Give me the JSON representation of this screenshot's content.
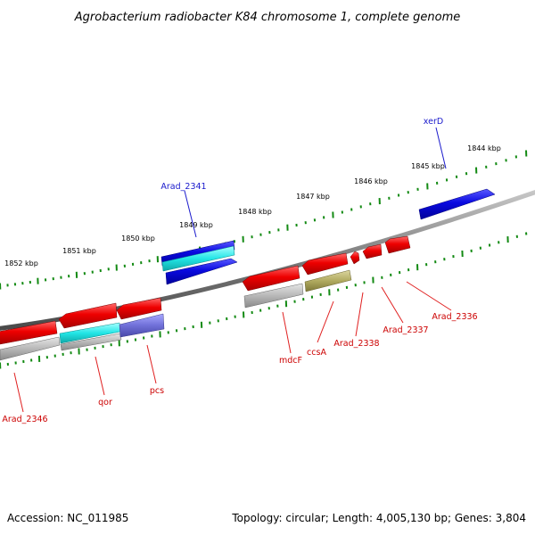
{
  "title": "Agrobacterium radiobacter K84 chromosome 1, complete genome",
  "footer": {
    "accession": "Accession: NC_011985",
    "summary": "Topology: circular; Length: 4,005,130 bp; Genes: 3,804"
  },
  "kbp_labels": [
    "1844 kbp",
    "1845 kbp",
    "1846 kbp",
    "1847 kbp",
    "1848 kbp",
    "1849 kbp",
    "1850 kbp",
    "1851 kbp",
    "1852 kbp"
  ],
  "gene_labels": {
    "xerD": "xerD",
    "Arad_2341": "Arad_2341",
    "Arad_2336": "Arad_2336",
    "Arad_2337": "Arad_2337",
    "Arad_2338": "Arad_2338",
    "ccsA": "ccsA",
    "mdcF": "mdcF",
    "pcs": "pcs",
    "qor": "qor",
    "Arad_2346": "Arad_2346"
  },
  "colors": {
    "forward_label": "#1a1acc",
    "reverse_label": "#cc0000",
    "forward_gene": "#0a0ae0",
    "reverse_gene": "#ee0000",
    "tick": "#138a13",
    "backbone": "#7a7a7a",
    "cog_cyan": "#22e6e6",
    "cog_purple": "#7070d8",
    "cog_olive": "#b0aa60",
    "cog_gray": "#b8b8b8"
  }
}
